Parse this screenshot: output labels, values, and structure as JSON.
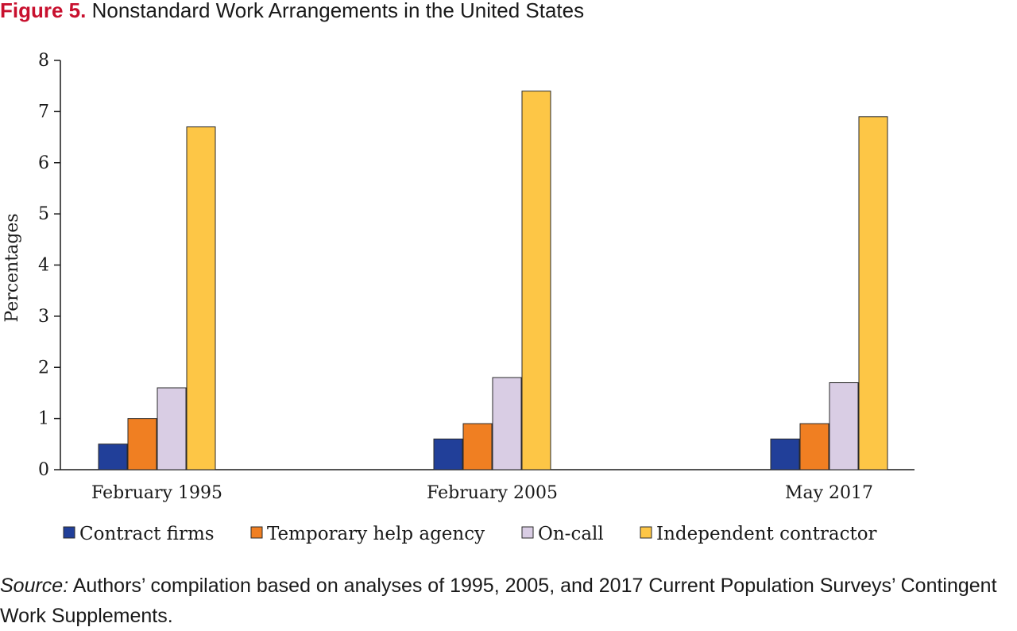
{
  "figure": {
    "number_label": "Figure 5.",
    "title_text": " Nonstandard Work Arrangements in the United States"
  },
  "source": {
    "label": "Source:",
    "text": " Authors’ compilation based on analyses of 1995, 2005, and 2017 Current Population Surveys’ Contingent Work Supplements."
  },
  "chart_data": {
    "type": "bar",
    "title": "",
    "xlabel": "",
    "ylabel": "Percentages",
    "ylim": [
      0,
      8
    ],
    "yticks": [
      0,
      1,
      2,
      3,
      4,
      5,
      6,
      7,
      8
    ],
    "grid": false,
    "legend_position": "bottom",
    "categories": [
      "February 1995",
      "February 2005",
      "May 2017"
    ],
    "series": [
      {
        "name": "Contract firms",
        "color": "#213f99",
        "values": [
          0.5,
          0.6,
          0.6
        ]
      },
      {
        "name": "Temporary help agency",
        "color": "#f07f22",
        "values": [
          1.0,
          0.9,
          0.9
        ]
      },
      {
        "name": "On-call",
        "color": "#d9cde4",
        "values": [
          1.6,
          1.8,
          1.7
        ]
      },
      {
        "name": "Independent contractor",
        "color": "#fdc646",
        "values": [
          6.7,
          7.4,
          6.9
        ]
      }
    ]
  }
}
